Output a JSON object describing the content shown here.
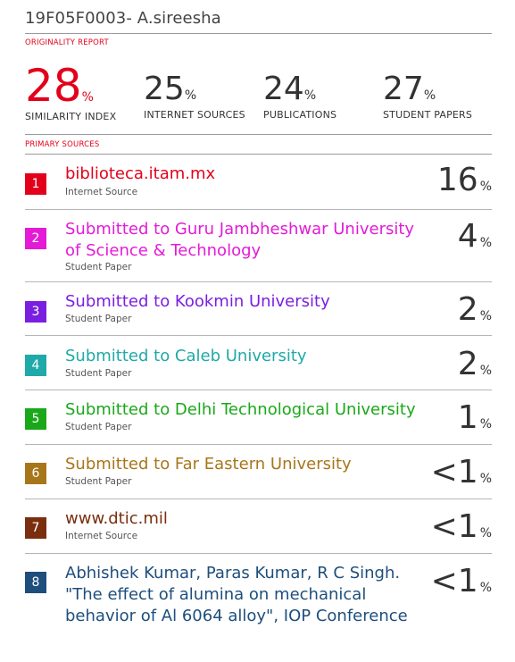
{
  "doc_title": "19F05F0003- A.sireesha",
  "originality_label": "ORIGINALITY REPORT",
  "primary_label": "PRIMARY SOURCES",
  "stats": [
    {
      "value": "28",
      "pct": "%",
      "label": "SIMILARITY INDEX"
    },
    {
      "value": "25",
      "pct": "%",
      "label": "INTERNET SOURCES"
    },
    {
      "value": "24",
      "pct": "%",
      "label": "PUBLICATIONS"
    },
    {
      "value": "27",
      "pct": "%",
      "label": "STUDENT PAPERS"
    }
  ],
  "sources": [
    {
      "n": "1",
      "title": "biblioteca.itam.mx",
      "type": "Internet Source",
      "pct": "16",
      "pct_sign": "%",
      "color": "#e3001b"
    },
    {
      "n": "2",
      "title": "Submitted to Guru Jambheshwar University of Science & Technology",
      "type": "Student Paper",
      "pct": "4",
      "pct_sign": "%",
      "color": "#e31bd6"
    },
    {
      "n": "3",
      "title": "Submitted to Kookmin University",
      "type": "Student Paper",
      "pct": "2",
      "pct_sign": "%",
      "color": "#7a1fe0"
    },
    {
      "n": "4",
      "title": "Submitted to Caleb University",
      "type": "Student Paper",
      "pct": "2",
      "pct_sign": "%",
      "color": "#1fa9a9"
    },
    {
      "n": "5",
      "title": "Submitted to Delhi Technological University",
      "type": "Student Paper",
      "pct": "1",
      "pct_sign": "%",
      "color": "#1aa81a"
    },
    {
      "n": "6",
      "title": "Submitted to Far Eastern University",
      "type": "Student Paper",
      "pct": "<1",
      "pct_sign": "%",
      "color": "#a8761a"
    },
    {
      "n": "7",
      "title": "www.dtic.mil",
      "type": "Internet Source",
      "pct": "<1",
      "pct_sign": "%",
      "color": "#7a2e0e"
    },
    {
      "n": "8",
      "title": "Abhishek Kumar, Paras Kumar, R C Singh. \"The effect of alumina on mechanical behavior of Al 6064 alloy\", IOP Conference",
      "type": "",
      "pct": "<1",
      "pct_sign": "%",
      "color": "#1e4e7c"
    }
  ]
}
